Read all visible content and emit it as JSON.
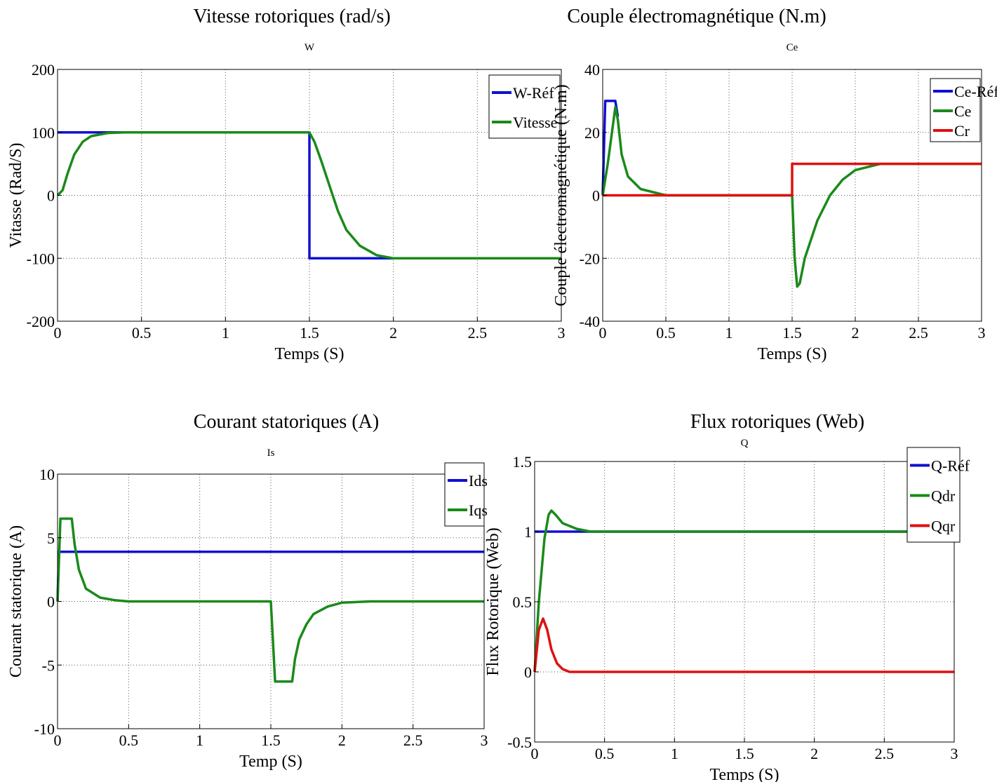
{
  "chart_data": [
    {
      "type": "line",
      "heading": "Vitesse rotoriques (rad/s)",
      "title": "W",
      "xlabel": "Temps (S)",
      "ylabel": "Vitasse (Rad/S)",
      "xlim": [
        0,
        3
      ],
      "ylim": [
        -200,
        200
      ],
      "xticks": [
        0,
        0.5,
        1,
        1.5,
        2,
        2.5,
        3
      ],
      "xtick_labels": [
        "0",
        "0.5",
        "1",
        "1.5",
        "2",
        "2.5",
        "3"
      ],
      "yticks": [
        -200,
        -100,
        0,
        100,
        200
      ],
      "ytick_labels": [
        "-200",
        "-100",
        "0",
        "100",
        "200"
      ],
      "grid": true,
      "legend_position": "top-right",
      "series": [
        {
          "name": "W-Réf",
          "color": "#1010d0",
          "x": [
            0,
            1.5,
            1.5,
            3
          ],
          "y": [
            100,
            100,
            -100,
            -100
          ]
        },
        {
          "name": "Vitesse",
          "color": "#1a8a1a",
          "x": [
            0,
            0.03,
            0.06,
            0.1,
            0.15,
            0.2,
            0.3,
            0.4,
            0.5,
            1.0,
            1.5,
            1.53,
            1.57,
            1.62,
            1.67,
            1.72,
            1.8,
            1.9,
            2.0,
            2.5,
            3
          ],
          "y": [
            0,
            8,
            35,
            65,
            85,
            94,
            99,
            100,
            100,
            100,
            100,
            85,
            55,
            15,
            -25,
            -55,
            -80,
            -95,
            -100,
            -100,
            -100
          ]
        }
      ]
    },
    {
      "type": "line",
      "heading": "Couple électromagnétique (N.m)",
      "title": "Ce",
      "xlabel": "Temps (S)",
      "ylabel": "Couple électromagnétique (N.m)",
      "xlim": [
        0,
        3
      ],
      "ylim": [
        -40,
        40
      ],
      "xticks": [
        0,
        0.5,
        1,
        1.5,
        2,
        2.5,
        3
      ],
      "xtick_labels": [
        "0",
        "0.5",
        "1",
        "1.5",
        "2",
        "2.5",
        "3"
      ],
      "yticks": [
        -40,
        -20,
        0,
        20,
        40
      ],
      "ytick_labels": [
        "-40",
        "-20",
        "0",
        "20",
        "40"
      ],
      "grid": true,
      "legend_position": "top-right",
      "series": [
        {
          "name": "Ce-Réf",
          "color": "#1010d0",
          "x": [
            0,
            0.02,
            0.1,
            0.12
          ],
          "y": [
            0,
            30,
            30,
            25
          ]
        },
        {
          "name": "Ce",
          "color": "#1a8a1a",
          "x": [
            0,
            0.04,
            0.08,
            0.1,
            0.12,
            0.15,
            0.2,
            0.3,
            0.4,
            0.5,
            1.0,
            1.5,
            1.52,
            1.54,
            1.56,
            1.6,
            1.7,
            1.8,
            1.9,
            2.0,
            2.2,
            2.5,
            3
          ],
          "y": [
            0,
            10,
            22,
            28,
            24,
            13,
            6,
            2,
            1,
            0,
            0,
            0,
            -20,
            -29,
            -28,
            -20,
            -8,
            0,
            5,
            8,
            10,
            10,
            10
          ]
        },
        {
          "name": "Cr",
          "color": "#e01010",
          "x": [
            0,
            1.5,
            1.5,
            3
          ],
          "y": [
            0,
            0,
            10,
            10
          ]
        }
      ]
    },
    {
      "type": "line",
      "heading": "Courant statoriques (A)",
      "title": "Is",
      "xlabel": "Temp (S)",
      "ylabel": "Courant statorique (A)",
      "xlim": [
        0,
        3
      ],
      "ylim": [
        -10,
        10
      ],
      "xticks": [
        0,
        0.5,
        1,
        1.5,
        2,
        2.5,
        3
      ],
      "xtick_labels": [
        "0",
        "0.5",
        "1",
        "1.5",
        "2",
        "2.5",
        "3"
      ],
      "yticks": [
        -10,
        -5,
        0,
        5,
        10
      ],
      "ytick_labels": [
        "-10",
        "-5",
        "0",
        "5",
        "10"
      ],
      "grid": true,
      "legend_position": "top-right",
      "series": [
        {
          "name": "Ids",
          "color": "#1010d0",
          "x": [
            0,
            0.01,
            3
          ],
          "y": [
            0,
            3.9,
            3.9
          ]
        },
        {
          "name": "Iqs",
          "color": "#1a8a1a",
          "x": [
            0,
            0.02,
            0.1,
            0.12,
            0.15,
            0.2,
            0.3,
            0.4,
            0.5,
            1.0,
            1.5,
            1.53,
            1.65,
            1.67,
            1.7,
            1.75,
            1.8,
            1.9,
            2.0,
            2.2,
            3
          ],
          "y": [
            0,
            6.5,
            6.5,
            4.5,
            2.5,
            1,
            0.3,
            0.1,
            0,
            0,
            0,
            -6.3,
            -6.3,
            -4.5,
            -3,
            -1.8,
            -1,
            -0.4,
            -0.1,
            0,
            0
          ]
        }
      ]
    },
    {
      "type": "line",
      "heading": "Flux rotoriques  (Web)",
      "title": "Q",
      "xlabel": "Temps (S)",
      "ylabel": "Flux Rotorique (Web)",
      "xlim": [
        0,
        3
      ],
      "ylim": [
        -0.5,
        1.5
      ],
      "xticks": [
        0,
        0.5,
        1,
        1.5,
        2,
        2.5,
        3
      ],
      "xtick_labels": [
        "0",
        "0.5",
        "1",
        "1.5",
        "2",
        "2.5",
        "3"
      ],
      "yticks": [
        -0.5,
        0,
        0.5,
        1,
        1.5
      ],
      "ytick_labels": [
        "-0.5",
        "0",
        "0.5",
        "1",
        "1.5"
      ],
      "grid": true,
      "legend_position": "top-right",
      "series": [
        {
          "name": "Q-Réf",
          "color": "#1010d0",
          "x": [
            0,
            3
          ],
          "y": [
            1,
            1
          ]
        },
        {
          "name": "Qdr",
          "color": "#1a8a1a",
          "x": [
            0,
            0.03,
            0.07,
            0.1,
            0.12,
            0.15,
            0.2,
            0.3,
            0.4,
            0.5,
            3
          ],
          "y": [
            0,
            0.5,
            0.95,
            1.12,
            1.15,
            1.12,
            1.06,
            1.02,
            1.0,
            1.0,
            1.0
          ]
        },
        {
          "name": "Qqr",
          "color": "#e01010",
          "x": [
            0,
            0.03,
            0.06,
            0.09,
            0.12,
            0.16,
            0.2,
            0.25,
            0.3,
            3
          ],
          "y": [
            0,
            0.3,
            0.38,
            0.3,
            0.16,
            0.06,
            0.02,
            0,
            0,
            0
          ]
        }
      ]
    }
  ]
}
